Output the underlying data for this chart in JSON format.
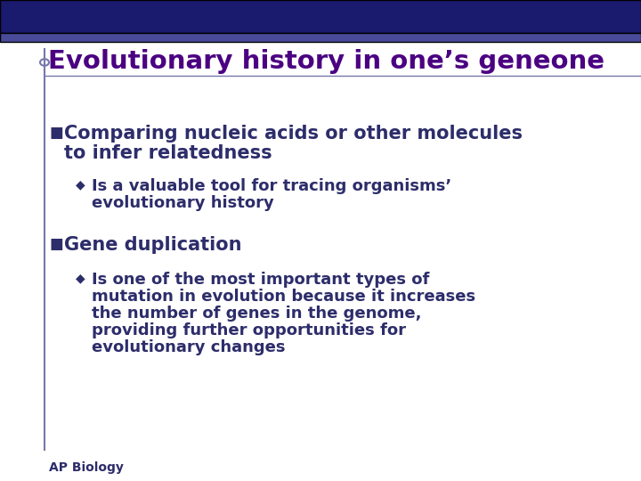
{
  "background_color": "#ffffff",
  "top_bar_color": "#1a1a6e",
  "top_bar_stripe_color": "#4a4a9a",
  "title": "Evolutionary history in one’s geneone",
  "title_color": "#4b0082",
  "title_fontsize": 21,
  "left_bar_color": "#7777aa",
  "bullet_color": "#2d2d6b",
  "text_color": "#2d2d6b",
  "bullet1_text_line1": "Comparing nucleic acids or other molecules",
  "bullet1_text_line2": "to infer relatedness",
  "bullet1_fontsize": 15,
  "sub_bullet1_text_line1": "Is a valuable tool for tracing organisms’",
  "sub_bullet1_text_line2": "evolutionary history",
  "sub_bullet1_fontsize": 13,
  "bullet2_text": "Gene duplication",
  "bullet2_fontsize": 15,
  "sub_bullet2_text_line1": "Is one of the most important types of",
  "sub_bullet2_text_line2": "mutation in evolution because it increases",
  "sub_bullet2_text_line3": "the number of genes in the genome,",
  "sub_bullet2_text_line4": "providing further opportunities for",
  "sub_bullet2_text_line5": "evolutionary changes",
  "sub_bullet2_fontsize": 13,
  "footer_text": "AP Biology",
  "footer_fontsize": 10
}
